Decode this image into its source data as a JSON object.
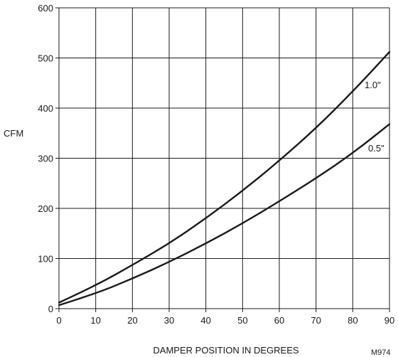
{
  "chart_data": {
    "type": "line",
    "title": "",
    "xlabel": "DAMPER POSITION IN DEGREES",
    "ylabel": "CFM",
    "xlim": [
      0,
      90
    ],
    "ylim": [
      0,
      600
    ],
    "x_ticks": [
      0,
      10,
      20,
      30,
      40,
      50,
      60,
      70,
      80,
      90
    ],
    "y_ticks": [
      0,
      100,
      200,
      300,
      400,
      500,
      600
    ],
    "grid": true,
    "legend": "none",
    "figure_code": "M974",
    "series": [
      {
        "name": "1.0\"",
        "color": "#1a1a1a",
        "x": [
          0,
          10,
          20,
          30,
          40,
          50,
          60,
          70,
          80,
          90
        ],
        "y": [
          12,
          46,
          87,
          130,
          180,
          235,
          295,
          360,
          433,
          512
        ]
      },
      {
        "name": "0.5\"",
        "color": "#1a1a1a",
        "x": [
          0,
          10,
          20,
          30,
          40,
          50,
          60,
          70,
          80,
          90
        ],
        "y": [
          7,
          30,
          60,
          93,
          130,
          170,
          214,
          260,
          310,
          368
        ]
      }
    ]
  }
}
